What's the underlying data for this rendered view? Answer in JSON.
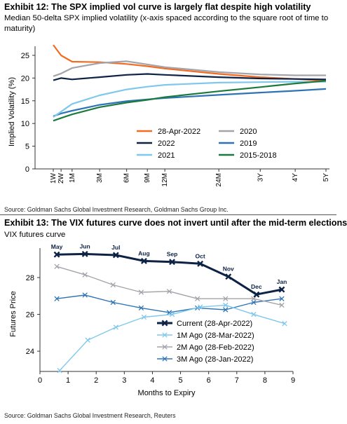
{
  "exhibit1": {
    "title": "Exhibit 12: The SPX implied vol curve is largely flat despite high volatility",
    "subtitle": "Median 50-delta SPX implied volatility (x-axis spaced according to the square root of time to maturity)",
    "source": "Source: Goldman Sachs Global Investment Research, Goldman Sachs Group Inc."
  },
  "exhibit2": {
    "title": "Exhibit 13: The VIX futures curve does not invert until after the mid-term elections",
    "subtitle": "VIX futures curve",
    "source": "Source: Goldman Sachs Global Investment Research, Reuters"
  },
  "chart_data": [
    {
      "type": "line",
      "title": "Exhibit 12: The SPX implied vol curve is largely flat despite high volatility",
      "subtitle": "Median 50-delta SPX implied volatility (x-axis spaced according to the square root of time to maturity)",
      "ylabel": "Implied Volatility (%)",
      "xlabel": "",
      "x_scale": "sqrt",
      "ylim": [
        0,
        27
      ],
      "yticks": [
        0,
        5,
        10,
        15,
        20,
        25
      ],
      "tick_labels": [
        "1W",
        "2W",
        "1M",
        "3M",
        "6M",
        "9M",
        "12M",
        "24M",
        "3Y",
        "4Y",
        "5Y"
      ],
      "x": [
        0.25,
        0.5,
        1,
        3,
        6,
        9,
        12,
        24,
        36,
        48,
        60
      ],
      "legend_position": "bottom-right",
      "series": [
        {
          "name": "28-Apr-2022",
          "color": "#f26b21",
          "values": [
            27.3,
            25.0,
            23.6,
            23.5,
            23.1,
            22.6,
            22.1,
            20.9,
            20.2,
            19.8,
            19.4
          ]
        },
        {
          "name": "2020",
          "color": "#a3a3aa",
          "values": [
            20.4,
            21.0,
            22.2,
            23.3,
            23.7,
            23.0,
            22.4,
            21.3,
            20.8,
            20.6,
            20.6
          ]
        },
        {
          "name": "2022",
          "color": "#0d2245",
          "values": [
            19.5,
            20.0,
            19.7,
            20.2,
            20.7,
            20.9,
            20.7,
            20.2,
            19.9,
            19.8,
            19.7
          ]
        },
        {
          "name": "2019",
          "color": "#2e74b5",
          "values": [
            11.6,
            12.2,
            12.8,
            14.1,
            14.9,
            15.3,
            15.6,
            16.3,
            16.8,
            17.2,
            17.6
          ]
        },
        {
          "name": "2021",
          "color": "#7fc8ec",
          "values": [
            11.4,
            12.6,
            14.3,
            16.2,
            17.5,
            18.1,
            18.5,
            19.0,
            19.1,
            19.2,
            19.2
          ]
        },
        {
          "name": "2015-2018",
          "color": "#1b7a3e",
          "values": [
            10.6,
            11.2,
            12.0,
            13.6,
            14.6,
            15.2,
            15.8,
            17.1,
            18.0,
            18.8,
            19.4
          ]
        }
      ]
    },
    {
      "type": "line",
      "title": "Exhibit 13: The VIX futures curve does not invert until after the mid-term elections",
      "subtitle": "VIX futures curve",
      "xlabel": "Months to Expiry",
      "ylabel": "Futures Price",
      "xlim": [
        0,
        9
      ],
      "ylim": [
        22.9,
        29.6
      ],
      "xticks": [
        0,
        1,
        2,
        3,
        4,
        5,
        6,
        7,
        8,
        9
      ],
      "yticks": [
        24,
        26,
        28
      ],
      "legend_position": "bottom-right",
      "series": [
        {
          "name": "Current (28-Apr-2022)",
          "color": "#0d2245",
          "marker": "x",
          "x": [
            0.6,
            1.6,
            2.7,
            3.7,
            4.7,
            5.7,
            6.7,
            7.7,
            8.6
          ],
          "values": [
            29.25,
            29.28,
            29.22,
            28.9,
            28.85,
            28.75,
            28.05,
            27.08,
            27.35
          ],
          "point_labels": [
            "May",
            "Jun",
            "Jul",
            "Aug",
            "Sep",
            "Oct",
            "Nov",
            "Dec",
            "Jan"
          ]
        },
        {
          "name": "1M Ago (28-Mar-2022)",
          "color": "#7fc8ec",
          "marker": "x",
          "x": [
            0.7,
            1.7,
            2.7,
            3.7,
            4.7,
            5.7,
            6.6,
            7.6,
            8.7
          ],
          "values": [
            22.95,
            24.6,
            25.3,
            25.85,
            26.0,
            26.4,
            26.5,
            26.0,
            25.5
          ]
        },
        {
          "name": "2M Ago (28-Feb-2022)",
          "color": "#a3a3aa",
          "marker": "x",
          "x": [
            0.6,
            1.6,
            2.6,
            3.6,
            4.6,
            5.6,
            6.6,
            7.6,
            8.6
          ],
          "values": [
            28.6,
            28.15,
            27.6,
            27.2,
            27.25,
            26.85,
            26.85,
            26.85,
            26.5
          ]
        },
        {
          "name": "3M Ago (28-Jan-2022)",
          "color": "#2e74b5",
          "marker": "x",
          "x": [
            0.6,
            1.6,
            2.6,
            3.6,
            4.6,
            5.6,
            6.6,
            7.6,
            8.6
          ],
          "values": [
            26.85,
            27.05,
            26.65,
            26.35,
            26.1,
            26.35,
            26.25,
            26.65,
            26.85
          ]
        }
      ]
    }
  ]
}
